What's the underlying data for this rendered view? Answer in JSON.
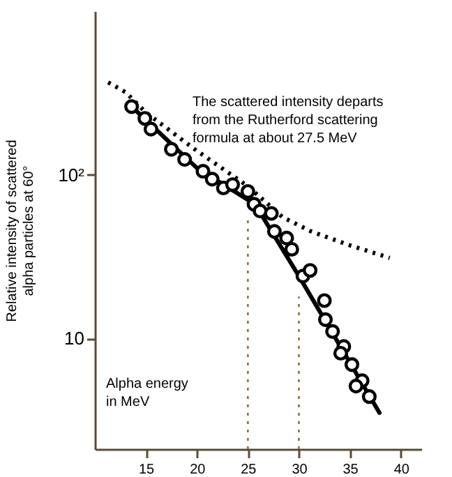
{
  "chart_data": {
    "type": "scatter",
    "ylabel": "Relative intensity of scattered alpha particles at 60°",
    "annotations": [
      "The scattered intensity departs from the Rutherford scattering formula at about 27.5 MeV",
      "Alpha energy in MeV"
    ],
    "xlim": [
      10,
      42
    ],
    "xticks": [
      15,
      20,
      25,
      30,
      35,
      40
    ],
    "ylim": [
      2.1,
      1000
    ],
    "yticks": [
      {
        "value": 10,
        "label": "10"
      },
      {
        "value": 100,
        "label": "10²"
      }
    ],
    "log": "y",
    "grid": false,
    "series": [
      {
        "type": "scatter",
        "marker": "circle",
        "color": "#000000",
        "x": [
          13.6,
          14.9,
          15.5,
          17.5,
          18.8,
          20.6,
          21.5,
          22.6,
          23.5,
          25.0,
          25.6,
          26.2,
          27.3,
          27.6,
          28.8,
          29.3,
          30.4,
          31.1,
          32.5,
          32.6,
          33.3,
          34.4,
          34.1,
          35.2,
          36.2,
          35.6,
          36.9
        ],
        "values": [
          261,
          221,
          190,
          143,
          124,
          105,
          94,
          83,
          87,
          79,
          66,
          60,
          58,
          45,
          41,
          35,
          24,
          26,
          17,
          13,
          11,
          8.9,
          8.1,
          6.9,
          5.5,
          5.1,
          4.4
        ]
      },
      {
        "type": "line",
        "line_style": "solid",
        "color": "#000000",
        "x": [
          13.6,
          20,
          25.7,
          30,
          37.9
        ],
        "values": [
          261,
          110,
          66,
          24,
          3.5
        ]
      },
      {
        "type": "line",
        "line_style": "dotted",
        "color": "#000000",
        "x": [
          11.3,
          13,
          15,
          20,
          25,
          28.4,
          31.2,
          35,
          38.9
        ],
        "values": [
          367,
          320,
          240,
          140,
          85,
          55,
          45,
          37,
          31
        ]
      },
      {
        "type": "line",
        "line_style": "dotted",
        "color": "#8b6d3f",
        "x": [
          25,
          25
        ],
        "values": [
          2.1,
          54
        ]
      },
      {
        "type": "line",
        "line_style": "dotted",
        "color": "#8b6d3f",
        "x": [
          30,
          30
        ],
        "values": [
          2.1,
          18
        ]
      }
    ]
  }
}
